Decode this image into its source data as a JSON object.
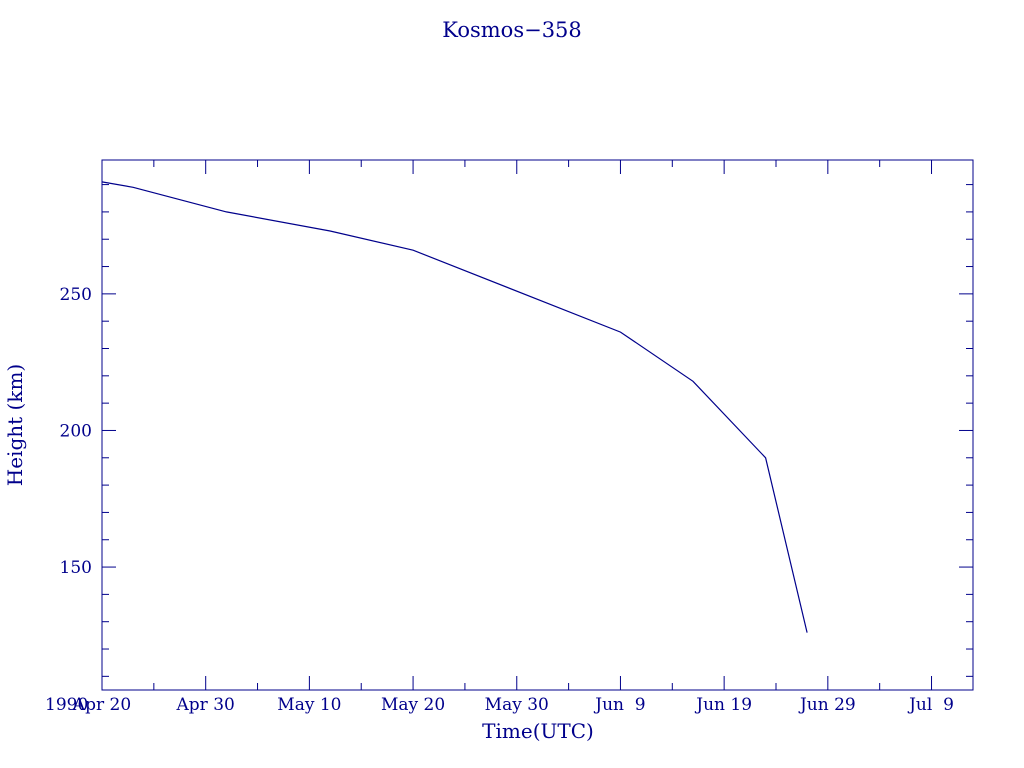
{
  "chart_data": {
    "type": "line",
    "title": "Kosmos−358",
    "xlabel": "Time(UTC)",
    "ylabel": "Height (km)",
    "x_start_label": "1990",
    "x_ticks": [
      {
        "date": "1990-04-20",
        "label": "Apr 20"
      },
      {
        "date": "1990-04-30",
        "label": "Apr 30"
      },
      {
        "date": "1990-05-10",
        "label": "May 10"
      },
      {
        "date": "1990-05-20",
        "label": "May 20"
      },
      {
        "date": "1990-05-30",
        "label": "May 30"
      },
      {
        "date": "1990-06-09",
        "label": "Jun  9"
      },
      {
        "date": "1990-06-19",
        "label": "Jun 19"
      },
      {
        "date": "1990-06-29",
        "label": "Jun 29"
      },
      {
        "date": "1990-07-09",
        "label": "Jul  9"
      }
    ],
    "y_ticks": [
      150,
      200,
      250
    ],
    "xlim": [
      "1990-04-20",
      "1990-07-13"
    ],
    "ylim": [
      105,
      299
    ],
    "grid": false,
    "line_color": "#00008b",
    "series": [
      {
        "x": [
          "1990-04-20",
          "1990-04-23",
          "1990-05-02",
          "1990-05-12",
          "1990-05-20",
          "1990-06-09",
          "1990-06-16",
          "1990-06-23",
          "1990-06-27"
        ],
        "y": [
          291,
          289,
          280,
          273,
          266,
          236,
          218,
          190,
          126
        ]
      }
    ]
  }
}
